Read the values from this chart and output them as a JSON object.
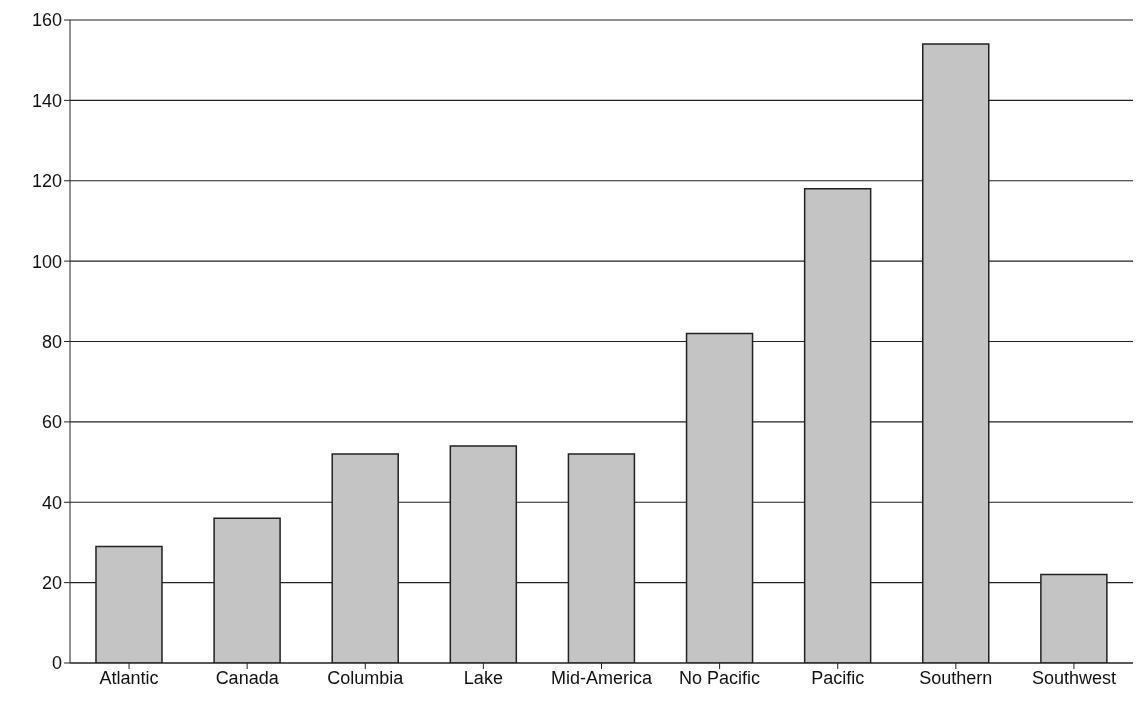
{
  "chart_data": {
    "type": "bar",
    "categories": [
      "Atlantic",
      "Canada",
      "Columbia",
      "Lake",
      "Mid-America",
      "No Pacific",
      "Pacific",
      "Southern",
      "Southwest"
    ],
    "values": [
      29,
      36,
      52,
      54,
      52,
      82,
      118,
      154,
      22
    ],
    "color": "#c4c4c4",
    "ylim": [
      0,
      160
    ],
    "yticks": [
      0,
      20,
      40,
      60,
      80,
      100,
      120,
      140,
      160
    ],
    "grid": "y"
  }
}
